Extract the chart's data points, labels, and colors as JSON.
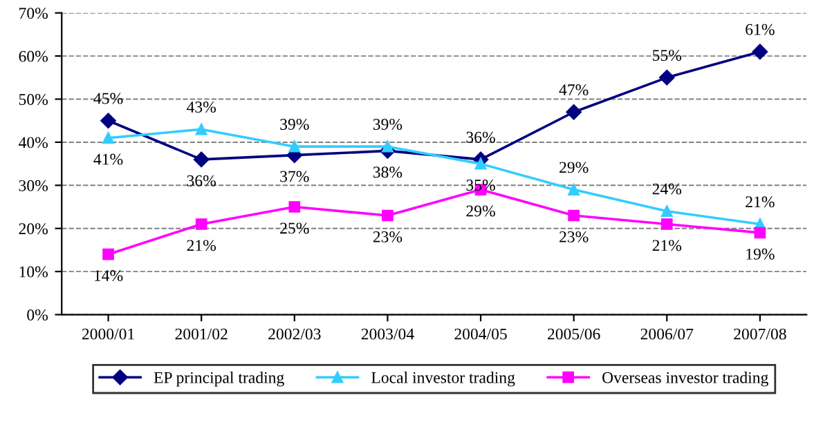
{
  "chart_data": {
    "type": "line",
    "categories": [
      "2000/01",
      "2001/02",
      "2002/03",
      "2003/04",
      "2004/05",
      "2005/06",
      "2006/07",
      "2007/08"
    ],
    "series": [
      {
        "name": "EP principal trading",
        "color": "#000080",
        "marker": "diamond",
        "values": [
          45,
          36,
          37,
          38,
          36,
          47,
          55,
          61
        ],
        "value_labels": [
          "45%",
          "36%",
          "37%",
          "38%",
          "36%",
          "47%",
          "55%",
          "61%"
        ]
      },
      {
        "name": "Local investor trading",
        "color": "#33ccff",
        "marker": "triangle",
        "values": [
          41,
          43,
          39,
          39,
          35,
          29,
          24,
          21
        ],
        "value_labels": [
          "41%",
          "43%",
          "39%",
          "39%",
          "35%",
          "29%",
          "24%",
          "21%"
        ]
      },
      {
        "name": "Overseas investor trading",
        "color": "#ff00ff",
        "marker": "square",
        "values": [
          14,
          21,
          25,
          23,
          29,
          23,
          21,
          19
        ],
        "value_labels": [
          "14%",
          "21%",
          "25%",
          "23%",
          "29%",
          "23%",
          "21%",
          "19%"
        ]
      }
    ],
    "ylim": [
      0,
      70
    ],
    "yticks": [
      {
        "value": 0,
        "label": "0%"
      },
      {
        "value": 10,
        "label": "10%"
      },
      {
        "value": 20,
        "label": "20%"
      },
      {
        "value": 30,
        "label": "30%"
      },
      {
        "value": 40,
        "label": "40%"
      },
      {
        "value": 50,
        "label": "50%"
      },
      {
        "value": 60,
        "label": "60%"
      },
      {
        "value": 70,
        "label": "70%"
      }
    ],
    "grid": "y",
    "legend": "bottom",
    "line_style": "solid"
  }
}
